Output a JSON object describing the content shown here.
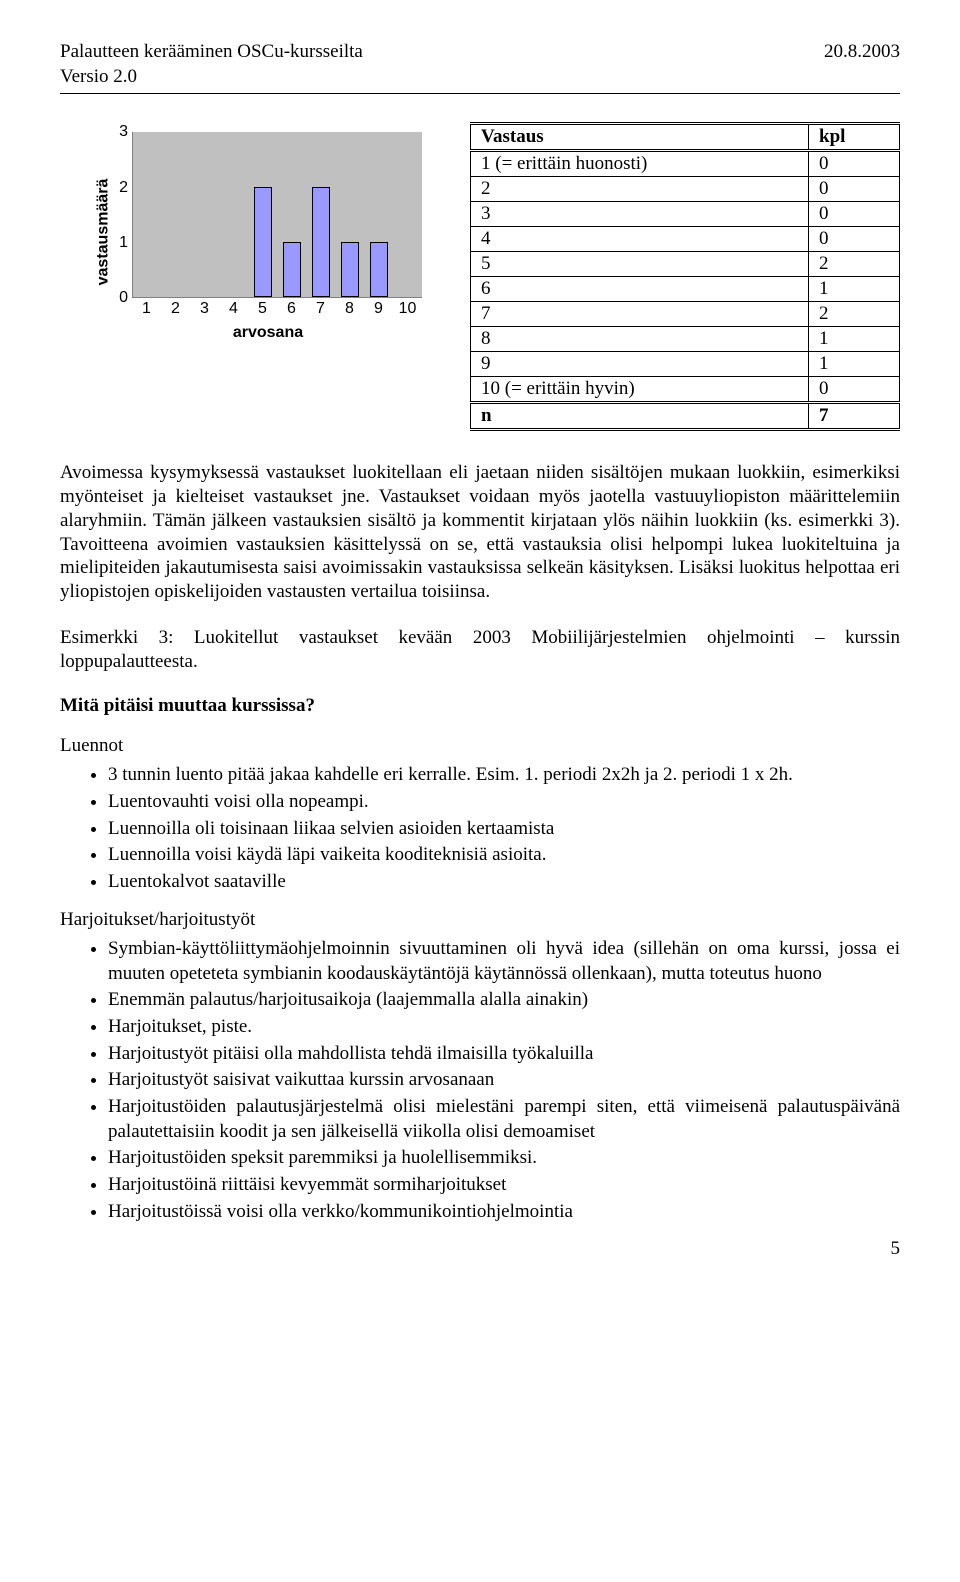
{
  "header": {
    "title_line1": "Palautteen kerääminen OSCu-kursseilta",
    "title_line2": "Versio 2.0",
    "date": "20.8.2003"
  },
  "chart": {
    "type": "bar",
    "x_label": "arvosana",
    "y_label": "vastausmäärä",
    "x_ticks": [
      "1",
      "2",
      "3",
      "4",
      "5",
      "6",
      "7",
      "8",
      "9",
      "10"
    ],
    "y_ticks": [
      "0",
      "1",
      "2",
      "3"
    ],
    "ylim_max": 3,
    "values": [
      0,
      0,
      0,
      0,
      2,
      1,
      2,
      1,
      1,
      0
    ],
    "bar_color": "#9999ff",
    "plot_bg": "#c0c0c0",
    "axis_color": "#808080"
  },
  "table": {
    "header_left": "Vastaus",
    "header_right": "kpl",
    "rows": [
      {
        "label": "1 (= erittäin huonosti)",
        "value": "0"
      },
      {
        "label": "2",
        "value": "0"
      },
      {
        "label": "3",
        "value": "0"
      },
      {
        "label": "4",
        "value": "0"
      },
      {
        "label": "5",
        "value": "2"
      },
      {
        "label": "6",
        "value": "1"
      },
      {
        "label": "7",
        "value": "2"
      },
      {
        "label": "8",
        "value": "1"
      },
      {
        "label": "9",
        "value": "1"
      },
      {
        "label": "10 (= erittäin hyvin)",
        "value": "0"
      }
    ],
    "footer_label": "n",
    "footer_value": "7"
  },
  "paragraphs": {
    "p1": "Avoimessa kysymyksessä vastaukset luokitellaan eli jaetaan niiden sisältöjen mukaan luokkiin, esimerkiksi myönteiset ja kielteiset vastaukset jne. Vastaukset voidaan myös jaotella vastuuyliopiston määrittelemiin alaryhmiin. Tämän jälkeen vastauksien sisältö ja kommentit kirjataan ylös näihin luokkiin (ks. esimerkki 3). Tavoitteena avoimien vastauksien käsittelyssä on se, että vastauksia olisi helpompi lukea luokiteltuina ja mielipiteiden jakautumisesta saisi avoimissakin vastauksissa selkeän käsityksen. Lisäksi luokitus helpottaa eri yliopistojen opiskelijoiden vastausten vertailua toisiinsa.",
    "p2": "Esimerkki 3: Luokitellut vastaukset kevään 2003 Mobiilijärjestelmien ohjelmointi – kurssin loppupalautteesta."
  },
  "section_heading": "Mitä pitäisi muuttaa kurssissa?",
  "group1_title": "Luennot",
  "group1_items": [
    "3 tunnin luento pitää jakaa kahdelle eri kerralle. Esim. 1. periodi 2x2h ja 2. periodi 1 x 2h.",
    "Luentovauhti voisi olla nopeampi.",
    "Luennoilla oli toisinaan liikaa selvien asioiden kertaamista",
    "Luennoilla voisi käydä läpi vaikeita kooditeknisiä asioita.",
    "Luentokalvot saataville"
  ],
  "group2_title": "Harjoitukset/harjoitustyöt",
  "group2_items": [
    "Symbian-käyttöliittymäohjelmoinnin sivuuttaminen oli hyvä idea (sillehän on oma kurssi, jossa ei muuten opeteteta symbianin koodauskäytäntöjä käytännössä ollenkaan), mutta toteutus huono",
    "Enemmän palautus/harjoitusaikoja (laajemmalla alalla ainakin)",
    "Harjoitukset, piste.",
    "Harjoitustyöt pitäisi olla mahdollista tehdä ilmaisilla työkaluilla",
    "Harjoitustyöt saisivat vaikuttaa kurssin arvosanaan",
    "Harjoitustöiden palautusjärjestelmä olisi mielestäni parempi siten, että viimeisenä palautuspäivänä palautettaisiin koodit ja sen jälkeisellä viikolla olisi demoamiset",
    "Harjoitustöiden speksit paremmiksi ja huolellisemmiksi.",
    "Harjoitustöinä riittäisi kevyemmät sormiharjoitukset",
    "Harjoitustöissä voisi olla verkko/kommunikointiohjelmointia"
  ],
  "page_number": "5"
}
